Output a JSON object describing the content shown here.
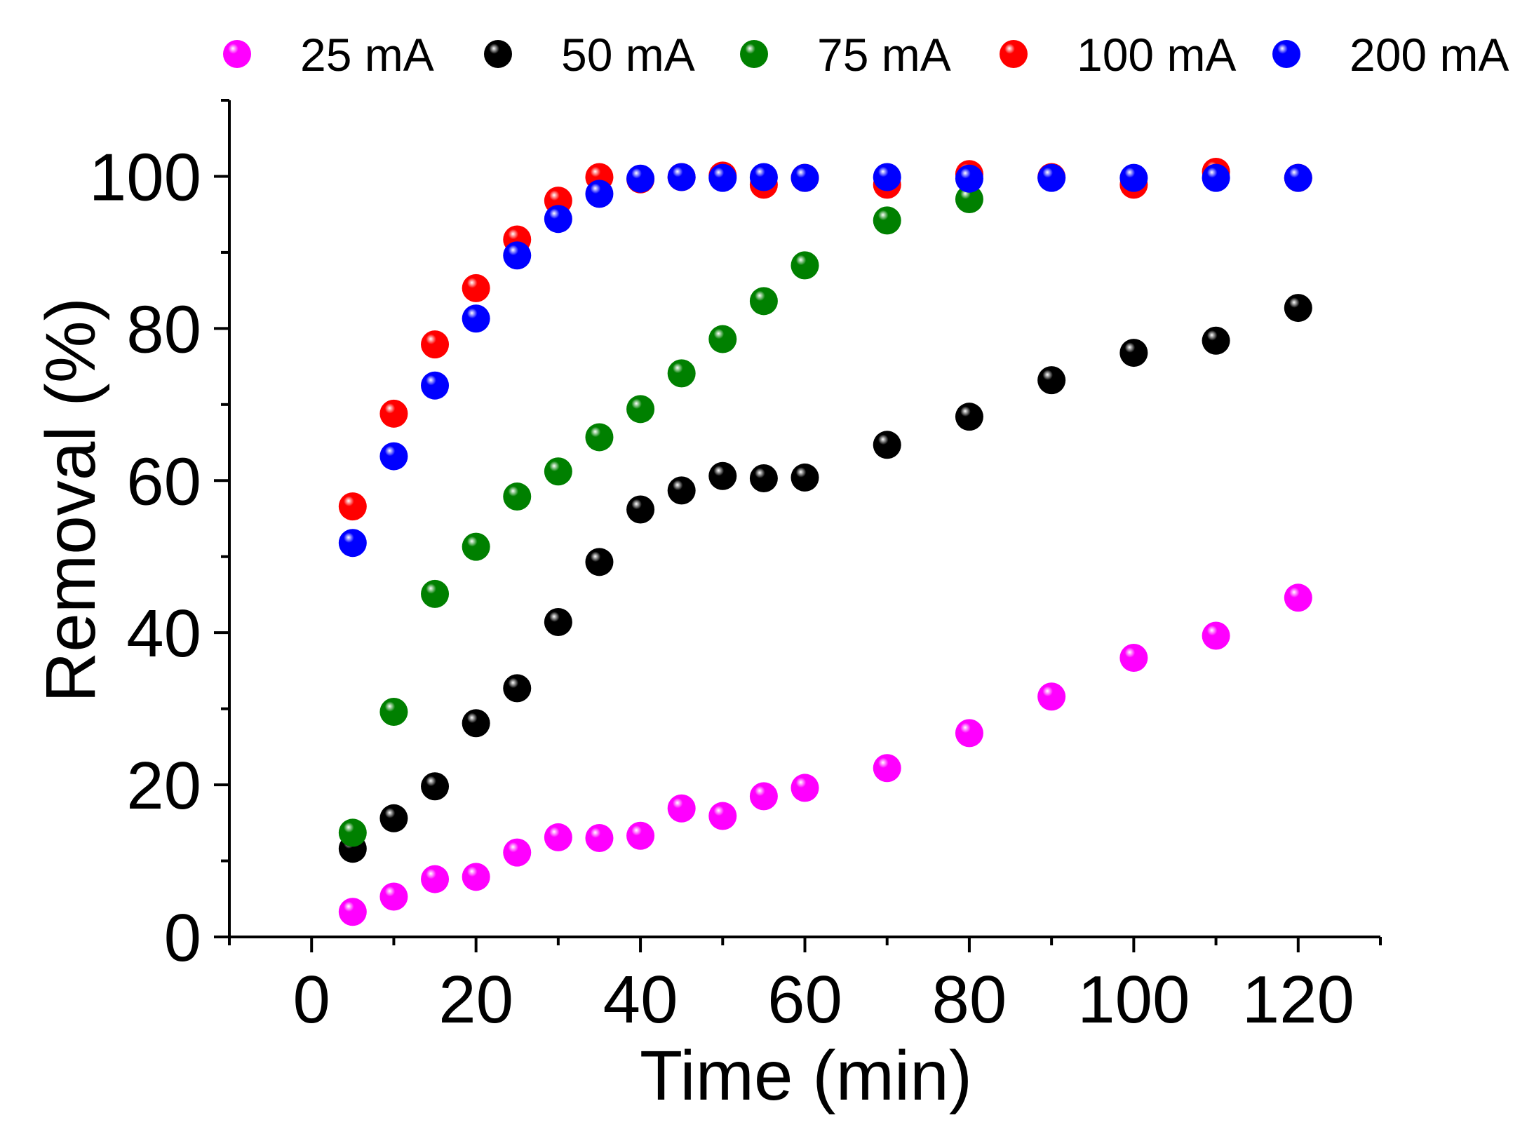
{
  "chart_data": {
    "type": "scatter",
    "title": "",
    "xlabel": "Time (min)",
    "ylabel": "Removal (%)",
    "xlim": [
      -10,
      130
    ],
    "ylim": [
      0,
      110
    ],
    "xticks": [
      0,
      20,
      40,
      60,
      80,
      100,
      120
    ],
    "yticks": [
      0,
      20,
      40,
      60,
      80,
      100
    ],
    "grid": false,
    "legend_position": "top",
    "series": [
      {
        "name": "25 mA",
        "color": "#ff00ff",
        "points": [
          [
            5,
            3.3
          ],
          [
            10,
            5.3
          ],
          [
            15,
            7.6
          ],
          [
            20,
            7.9
          ],
          [
            25,
            11.1
          ],
          [
            30,
            13.1
          ],
          [
            35,
            13
          ],
          [
            40,
            13.3
          ],
          [
            45,
            16.9
          ],
          [
            50,
            15.9
          ],
          [
            55,
            18.5
          ],
          [
            60,
            19.6
          ],
          [
            70,
            22.2
          ],
          [
            80,
            26.8
          ],
          [
            90,
            31.6
          ],
          [
            100,
            36.7
          ],
          [
            110,
            39.6
          ],
          [
            120,
            44.6
          ]
        ]
      },
      {
        "name": "50 mA",
        "color": "#000000",
        "points": [
          [
            5,
            11.6
          ],
          [
            10,
            15.6
          ],
          [
            15,
            19.8
          ],
          [
            20,
            28.1
          ],
          [
            25,
            32.7
          ],
          [
            30,
            41.4
          ],
          [
            35,
            49.3
          ],
          [
            40,
            56.2
          ],
          [
            45,
            58.7
          ],
          [
            50,
            60.6
          ],
          [
            55,
            60.3
          ],
          [
            60,
            60.4
          ],
          [
            70,
            64.7
          ],
          [
            80,
            68.4
          ],
          [
            90,
            73.2
          ],
          [
            100,
            76.8
          ],
          [
            110,
            78.4
          ],
          [
            120,
            82.7
          ]
        ]
      },
      {
        "name": "75 mA",
        "color": "#008000",
        "points": [
          [
            5,
            13.7
          ],
          [
            10,
            29.6
          ],
          [
            15,
            45.1
          ],
          [
            20,
            51.3
          ],
          [
            25,
            57.9
          ],
          [
            30,
            61.2
          ],
          [
            35,
            65.7
          ],
          [
            40,
            69.4
          ],
          [
            45,
            74.1
          ],
          [
            50,
            78.6
          ],
          [
            55,
            83.6
          ],
          [
            60,
            88.3
          ],
          [
            70,
            94.2
          ],
          [
            80,
            97
          ]
        ]
      },
      {
        "name": "100 mA",
        "color": "#ff0000",
        "points": [
          [
            5,
            56.6
          ],
          [
            10,
            68.8
          ],
          [
            15,
            77.9
          ],
          [
            20,
            85.3
          ],
          [
            25,
            91.7
          ],
          [
            30,
            96.8
          ],
          [
            35,
            99.9
          ],
          [
            40,
            99.6
          ],
          [
            45,
            99.9
          ],
          [
            50,
            100.1
          ],
          [
            55,
            98.9
          ],
          [
            60,
            99.8
          ],
          [
            70,
            98.9
          ],
          [
            80,
            100.3
          ],
          [
            90,
            99.9
          ],
          [
            100,
            98.9
          ],
          [
            110,
            100.6
          ],
          [
            120,
            99.8
          ]
        ]
      },
      {
        "name": "200 mA",
        "color": "#0000ff",
        "points": [
          [
            5,
            51.8
          ],
          [
            10,
            63.2
          ],
          [
            15,
            72.5
          ],
          [
            20,
            81.3
          ],
          [
            25,
            89.6
          ],
          [
            30,
            94.4
          ],
          [
            35,
            97.7
          ],
          [
            40,
            99.7
          ],
          [
            45,
            99.9
          ],
          [
            50,
            99.8
          ],
          [
            55,
            99.9
          ],
          [
            60,
            99.8
          ],
          [
            70,
            99.9
          ],
          [
            80,
            99.7
          ],
          [
            90,
            99.8
          ],
          [
            100,
            99.8
          ],
          [
            110,
            99.8
          ],
          [
            120,
            99.8
          ]
        ]
      }
    ]
  }
}
